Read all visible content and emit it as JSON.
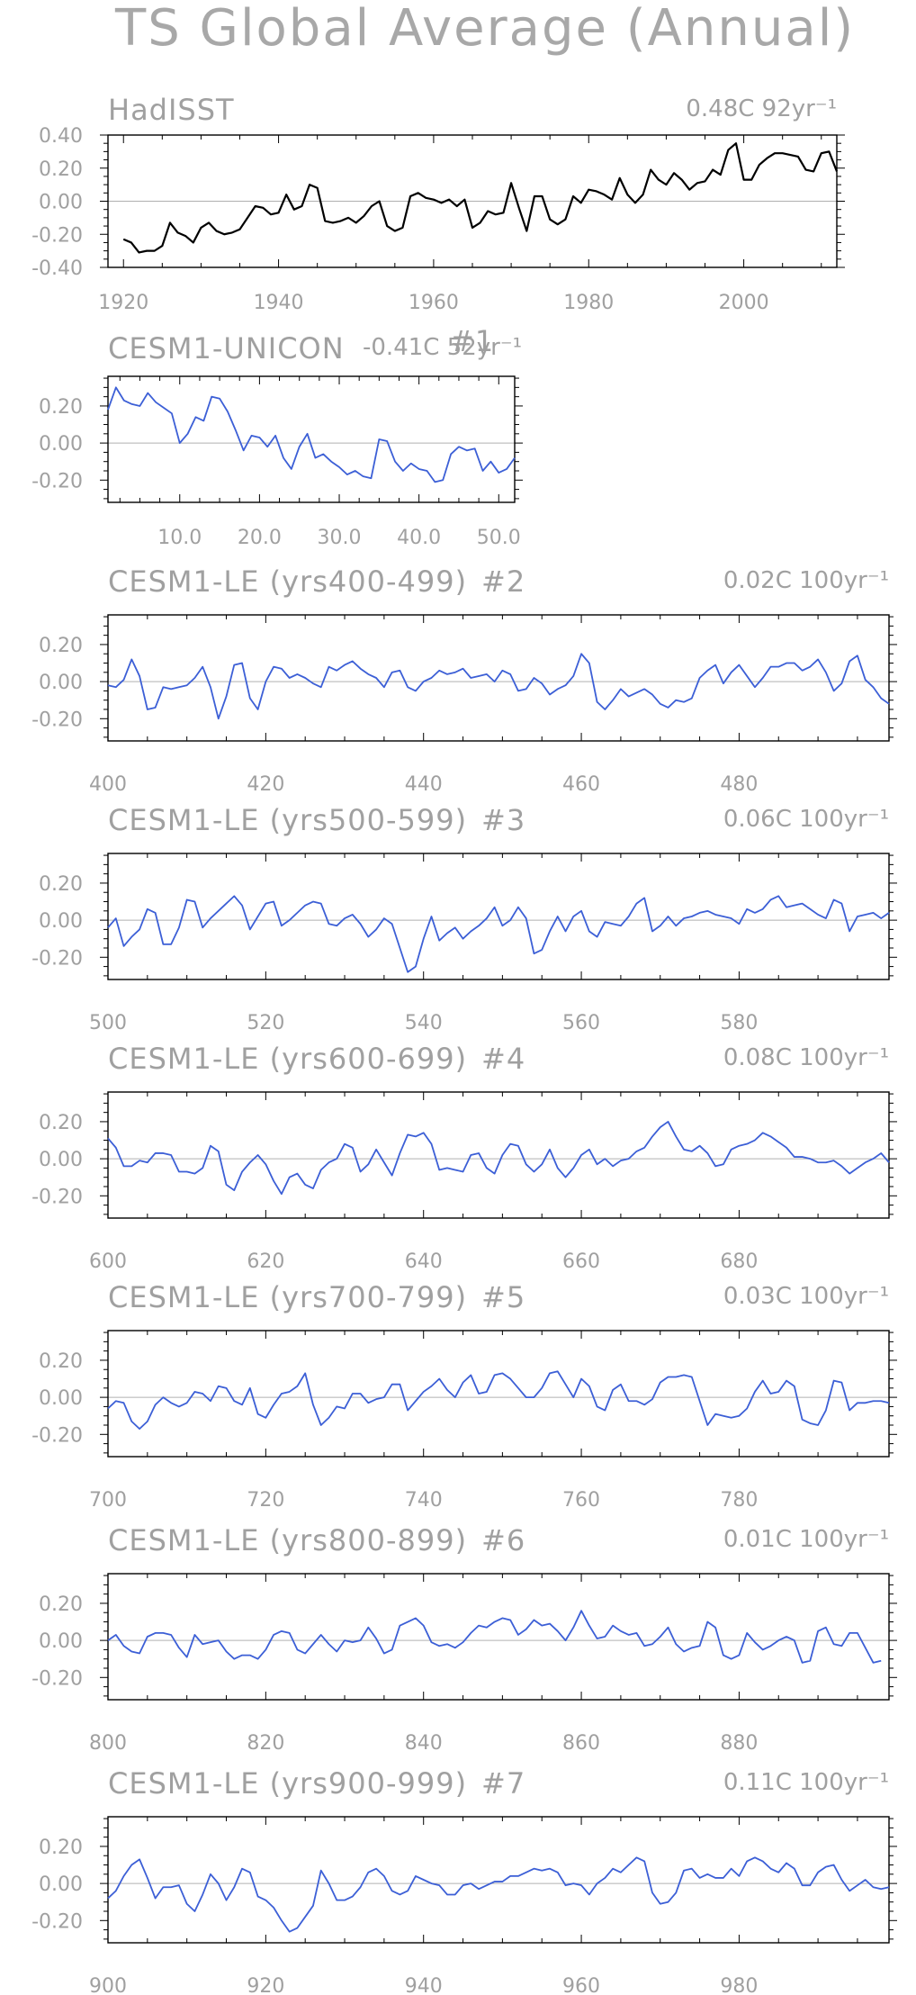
{
  "figure": {
    "title": "TS Global Average (Annual)"
  },
  "chart_data": [
    {
      "type": "line",
      "title": "HadISST",
      "trend_label": "0.48C 92yr⁻¹",
      "color": "#000000",
      "xlim": [
        1918,
        2012
      ],
      "ylim": [
        -0.4,
        0.4
      ],
      "x_ticks": [
        1920,
        1940,
        1960,
        1980,
        2000
      ],
      "x_tick_labels": [
        "1920",
        "1940",
        "1960",
        "1980",
        "2000"
      ],
      "y_ticks": [
        -0.4,
        -0.2,
        0.0,
        0.2,
        0.4
      ],
      "y_tick_labels": [
        "-0.40",
        "-0.20",
        "0.00",
        "0.20",
        "0.40"
      ],
      "x_start": 1920,
      "x_step": 1,
      "values": [
        -0.23,
        -0.25,
        -0.31,
        -0.3,
        -0.3,
        -0.27,
        -0.13,
        -0.19,
        -0.21,
        -0.25,
        -0.16,
        -0.13,
        -0.18,
        -0.2,
        -0.19,
        -0.17,
        -0.1,
        -0.03,
        -0.04,
        -0.08,
        -0.07,
        0.04,
        -0.05,
        -0.03,
        0.1,
        0.08,
        -0.12,
        -0.13,
        -0.12,
        -0.1,
        -0.13,
        -0.09,
        -0.03,
        0.0,
        -0.15,
        -0.18,
        -0.16,
        0.03,
        0.05,
        0.02,
        0.01,
        -0.01,
        0.01,
        -0.03,
        0.01,
        -0.16,
        -0.13,
        -0.06,
        -0.08,
        -0.07,
        0.11,
        -0.04,
        -0.18,
        0.03,
        0.03,
        -0.11,
        -0.14,
        -0.11,
        0.03,
        -0.01,
        0.07,
        0.06,
        0.04,
        0.01,
        0.14,
        0.04,
        -0.01,
        0.04,
        0.19,
        0.13,
        0.1,
        0.17,
        0.13,
        0.07,
        0.11,
        0.12,
        0.19,
        0.16,
        0.31,
        0.35,
        0.13,
        0.13,
        0.22,
        0.26,
        0.29,
        0.29,
        0.28,
        0.27,
        0.19,
        0.18,
        0.29,
        0.3,
        0.18
      ]
    },
    {
      "type": "line",
      "title": "CESM1-UNICON",
      "trend_label": "-0.41C 52yr⁻¹",
      "index_label": "#1",
      "color": "#3c5fd6",
      "xlim": [
        1,
        52
      ],
      "ylim": [
        -0.32,
        0.36
      ],
      "x_ticks": [
        10,
        20,
        30,
        40,
        50
      ],
      "x_tick_labels": [
        "10.0",
        "20.0",
        "30.0",
        "40.0",
        "50.0"
      ],
      "y_ticks": [
        -0.2,
        0.0,
        0.2
      ],
      "y_tick_labels": [
        "-0.20",
        "0.00",
        "0.20"
      ],
      "x_start": 1,
      "x_step": 1,
      "values": [
        0.18,
        0.3,
        0.23,
        0.21,
        0.2,
        0.27,
        0.22,
        0.19,
        0.16,
        0.0,
        0.05,
        0.14,
        0.12,
        0.25,
        0.24,
        0.17,
        0.07,
        -0.04,
        0.04,
        0.03,
        -0.02,
        0.04,
        -0.08,
        -0.14,
        -0.02,
        0.05,
        -0.08,
        -0.06,
        -0.1,
        -0.13,
        -0.17,
        -0.15,
        -0.18,
        -0.19,
        0.02,
        0.01,
        -0.1,
        -0.15,
        -0.11,
        -0.14,
        -0.15,
        -0.21,
        -0.2,
        -0.06,
        -0.02,
        -0.04,
        -0.03,
        -0.15,
        -0.1,
        -0.16,
        -0.14,
        -0.08
      ]
    },
    {
      "type": "line",
      "title": "CESM1-LE (yrs400-499)",
      "trend_label": "0.02C 100yr⁻¹",
      "index_label": "#2",
      "color": "#3c5fd6",
      "xlim": [
        400,
        499
      ],
      "ylim": [
        -0.32,
        0.36
      ],
      "x_ticks": [
        400,
        420,
        440,
        460,
        480
      ],
      "x_tick_labels": [
        "400",
        "420",
        "440",
        "460",
        "480"
      ],
      "y_ticks": [
        -0.2,
        0.0,
        0.2
      ],
      "y_tick_labels": [
        "-0.20",
        "0.00",
        "0.20"
      ],
      "x_start": 400,
      "x_step": 1,
      "values": [
        -0.02,
        -0.03,
        0.01,
        0.12,
        0.03,
        -0.15,
        -0.14,
        -0.03,
        -0.04,
        -0.03,
        -0.02,
        0.02,
        0.08,
        -0.03,
        -0.2,
        -0.08,
        0.09,
        0.1,
        -0.09,
        -0.15,
        0.0,
        0.08,
        0.07,
        0.02,
        0.04,
        0.02,
        -0.01,
        -0.03,
        0.08,
        0.06,
        0.09,
        0.11,
        0.07,
        0.04,
        0.02,
        -0.03,
        0.05,
        0.06,
        -0.03,
        -0.05,
        0.0,
        0.02,
        0.06,
        0.04,
        0.05,
        0.07,
        0.02,
        0.03,
        0.04,
        0.0,
        0.06,
        0.04,
        -0.05,
        -0.04,
        0.02,
        -0.01,
        -0.07,
        -0.04,
        -0.02,
        0.03,
        0.15,
        0.1,
        -0.11,
        -0.15,
        -0.1,
        -0.04,
        -0.08,
        -0.06,
        -0.04,
        -0.07,
        -0.12,
        -0.14,
        -0.1,
        -0.11,
        -0.09,
        0.02,
        0.06,
        0.09,
        -0.01,
        0.05,
        0.09,
        0.03,
        -0.03,
        0.02,
        0.08,
        0.08,
        0.1,
        0.1,
        0.06,
        0.08,
        0.12,
        0.05,
        -0.05,
        -0.01,
        0.11,
        0.14,
        0.01,
        -0.03,
        -0.09,
        -0.12
      ]
    },
    {
      "type": "line",
      "title": "CESM1-LE (yrs500-599)",
      "trend_label": "0.06C 100yr⁻¹",
      "index_label": "#3",
      "color": "#3c5fd6",
      "xlim": [
        500,
        599
      ],
      "ylim": [
        -0.32,
        0.36
      ],
      "x_ticks": [
        500,
        520,
        540,
        560,
        580
      ],
      "x_tick_labels": [
        "500",
        "520",
        "540",
        "560",
        "580"
      ],
      "y_ticks": [
        -0.2,
        0.0,
        0.2
      ],
      "y_tick_labels": [
        "-0.20",
        "0.00",
        "0.20"
      ],
      "x_start": 500,
      "x_step": 1,
      "values": [
        -0.04,
        0.01,
        -0.14,
        -0.09,
        -0.05,
        0.06,
        0.04,
        -0.13,
        -0.13,
        -0.04,
        0.11,
        0.1,
        -0.04,
        0.01,
        0.05,
        0.09,
        0.13,
        0.08,
        -0.05,
        0.02,
        0.09,
        0.1,
        -0.03,
        0.0,
        0.04,
        0.08,
        0.1,
        0.09,
        -0.02,
        -0.03,
        0.01,
        0.03,
        -0.02,
        -0.09,
        -0.05,
        0.01,
        -0.02,
        -0.15,
        -0.28,
        -0.25,
        -0.1,
        0.02,
        -0.11,
        -0.07,
        -0.04,
        -0.1,
        -0.06,
        -0.03,
        0.01,
        0.07,
        -0.03,
        0.0,
        0.07,
        0.01,
        -0.18,
        -0.16,
        -0.06,
        0.02,
        -0.06,
        0.02,
        0.05,
        -0.06,
        -0.09,
        -0.01,
        -0.02,
        -0.03,
        0.02,
        0.09,
        0.12,
        -0.06,
        -0.03,
        0.02,
        -0.03,
        0.01,
        0.02,
        0.04,
        0.05,
        0.03,
        0.02,
        0.01,
        -0.02,
        0.06,
        0.04,
        0.06,
        0.11,
        0.13,
        0.07,
        0.08,
        0.09,
        0.06,
        0.03,
        0.01,
        0.11,
        0.09,
        -0.06,
        0.02,
        0.03,
        0.04,
        0.01,
        0.04
      ]
    },
    {
      "type": "line",
      "title": "CESM1-LE (yrs600-699)",
      "trend_label": "0.08C 100yr⁻¹",
      "index_label": "#4",
      "color": "#3c5fd6",
      "xlim": [
        600,
        699
      ],
      "ylim": [
        -0.32,
        0.36
      ],
      "x_ticks": [
        600,
        620,
        640,
        660,
        680
      ],
      "x_tick_labels": [
        "600",
        "620",
        "640",
        "660",
        "680"
      ],
      "y_ticks": [
        -0.2,
        0.0,
        0.2
      ],
      "y_tick_labels": [
        "-0.20",
        "0.00",
        "0.20"
      ],
      "x_start": 600,
      "x_step": 1,
      "values": [
        0.11,
        0.06,
        -0.04,
        -0.04,
        -0.01,
        -0.02,
        0.03,
        0.03,
        0.02,
        -0.07,
        -0.07,
        -0.08,
        -0.05,
        0.07,
        0.04,
        -0.14,
        -0.17,
        -0.07,
        -0.02,
        0.02,
        -0.03,
        -0.12,
        -0.19,
        -0.1,
        -0.08,
        -0.14,
        -0.16,
        -0.06,
        -0.02,
        0.0,
        0.08,
        0.06,
        -0.07,
        -0.03,
        0.05,
        -0.02,
        -0.09,
        0.03,
        0.13,
        0.12,
        0.14,
        0.08,
        -0.06,
        -0.05,
        -0.06,
        -0.07,
        0.02,
        0.03,
        -0.05,
        -0.08,
        0.02,
        0.08,
        0.07,
        -0.03,
        -0.07,
        -0.03,
        0.05,
        -0.05,
        -0.1,
        -0.05,
        0.02,
        0.05,
        -0.03,
        0.0,
        -0.04,
        -0.01,
        0.0,
        0.04,
        0.06,
        0.12,
        0.17,
        0.2,
        0.12,
        0.05,
        0.04,
        0.07,
        0.03,
        -0.04,
        -0.03,
        0.05,
        0.07,
        0.08,
        0.1,
        0.14,
        0.12,
        0.09,
        0.06,
        0.01,
        0.01,
        0.0,
        -0.02,
        -0.02,
        -0.01,
        -0.04,
        -0.08,
        -0.05,
        -0.02,
        0.0,
        0.03,
        -0.02
      ]
    },
    {
      "type": "line",
      "title": "CESM1-LE (yrs700-799)",
      "trend_label": "0.03C 100yr⁻¹",
      "index_label": "#5",
      "color": "#3c5fd6",
      "xlim": [
        700,
        799
      ],
      "ylim": [
        -0.32,
        0.36
      ],
      "x_ticks": [
        700,
        720,
        740,
        760,
        780
      ],
      "x_tick_labels": [
        "700",
        "720",
        "740",
        "760",
        "780"
      ],
      "y_ticks": [
        -0.2,
        0.0,
        0.2
      ],
      "y_tick_labels": [
        "-0.20",
        "0.00",
        "0.20"
      ],
      "x_start": 700,
      "x_step": 1,
      "values": [
        -0.06,
        -0.02,
        -0.03,
        -0.13,
        -0.17,
        -0.13,
        -0.04,
        0.0,
        -0.03,
        -0.05,
        -0.03,
        0.03,
        0.02,
        -0.02,
        0.06,
        0.05,
        -0.02,
        -0.04,
        0.05,
        -0.09,
        -0.11,
        -0.04,
        0.02,
        0.03,
        0.06,
        0.13,
        -0.04,
        -0.15,
        -0.11,
        -0.05,
        -0.06,
        0.02,
        0.02,
        -0.03,
        -0.01,
        0.0,
        0.07,
        0.07,
        -0.07,
        -0.02,
        0.03,
        0.06,
        0.1,
        0.04,
        0.0,
        0.08,
        0.12,
        0.02,
        0.03,
        0.12,
        0.13,
        0.1,
        0.05,
        0.0,
        0.0,
        0.05,
        0.13,
        0.14,
        0.07,
        0.0,
        0.1,
        0.06,
        -0.05,
        -0.07,
        0.04,
        0.07,
        -0.02,
        -0.02,
        -0.04,
        -0.01,
        0.08,
        0.11,
        0.11,
        0.12,
        0.11,
        -0.02,
        -0.15,
        -0.09,
        -0.1,
        -0.11,
        -0.1,
        -0.06,
        0.03,
        0.09,
        0.02,
        0.03,
        0.09,
        0.06,
        -0.12,
        -0.14,
        -0.15,
        -0.07,
        0.09,
        0.08,
        -0.07,
        -0.03,
        -0.03,
        -0.02,
        -0.02,
        -0.03
      ]
    },
    {
      "type": "line",
      "title": "CESM1-LE (yrs800-899)",
      "trend_label": "0.01C 100yr⁻¹",
      "index_label": "#6",
      "color": "#3c5fd6",
      "xlim": [
        800,
        899
      ],
      "ylim": [
        -0.32,
        0.36
      ],
      "x_ticks": [
        800,
        820,
        840,
        860,
        880
      ],
      "x_tick_labels": [
        "800",
        "820",
        "840",
        "860",
        "880"
      ],
      "y_ticks": [
        -0.2,
        0.0,
        0.2
      ],
      "y_tick_labels": [
        "-0.20",
        "0.00",
        "0.20"
      ],
      "x_start": 800,
      "x_step": 1,
      "values": [
        0.0,
        0.03,
        -0.03,
        -0.06,
        -0.07,
        0.02,
        0.04,
        0.04,
        0.03,
        -0.04,
        -0.09,
        0.03,
        -0.02,
        -0.01,
        0.0,
        -0.06,
        -0.1,
        -0.08,
        -0.08,
        -0.1,
        -0.05,
        0.03,
        0.05,
        0.04,
        -0.05,
        -0.07,
        -0.02,
        0.03,
        -0.02,
        -0.06,
        0.0,
        -0.01,
        0.0,
        0.07,
        0.01,
        -0.07,
        -0.05,
        0.08,
        0.1,
        0.12,
        0.08,
        -0.01,
        -0.03,
        -0.02,
        -0.04,
        -0.01,
        0.04,
        0.08,
        0.07,
        0.1,
        0.12,
        0.11,
        0.03,
        0.06,
        0.11,
        0.08,
        0.09,
        0.05,
        0.0,
        0.07,
        0.16,
        0.08,
        0.01,
        0.02,
        0.08,
        0.05,
        0.03,
        0.04,
        -0.03,
        -0.02,
        0.02,
        0.07,
        -0.02,
        -0.06,
        -0.04,
        -0.03,
        0.1,
        0.07,
        -0.08,
        -0.1,
        -0.08,
        0.04,
        -0.01,
        -0.05,
        -0.03,
        0.0,
        0.02,
        0.0,
        -0.12,
        -0.11,
        0.05,
        0.07,
        -0.02,
        -0.03,
        0.04,
        0.04,
        -0.04,
        -0.12,
        -0.11
      ]
    },
    {
      "type": "line",
      "title": "CESM1-LE (yrs900-999)",
      "trend_label": "0.11C 100yr⁻¹",
      "index_label": "#7",
      "color": "#3c5fd6",
      "xlim": [
        900,
        999
      ],
      "ylim": [
        -0.32,
        0.36
      ],
      "x_ticks": [
        900,
        920,
        940,
        960,
        980
      ],
      "x_tick_labels": [
        "900",
        "920",
        "940",
        "960",
        "980"
      ],
      "y_ticks": [
        -0.2,
        0.0,
        0.2
      ],
      "y_tick_labels": [
        "-0.20",
        "0.00",
        "0.20"
      ],
      "x_start": 900,
      "x_step": 1,
      "values": [
        -0.08,
        -0.04,
        0.04,
        0.1,
        0.13,
        0.03,
        -0.08,
        -0.02,
        -0.02,
        -0.01,
        -0.11,
        -0.15,
        -0.06,
        0.05,
        0.0,
        -0.09,
        -0.02,
        0.08,
        0.06,
        -0.07,
        -0.09,
        -0.13,
        -0.2,
        -0.26,
        -0.24,
        -0.18,
        -0.12,
        0.07,
        0.0,
        -0.09,
        -0.09,
        -0.07,
        -0.02,
        0.06,
        0.08,
        0.04,
        -0.04,
        -0.06,
        -0.04,
        0.04,
        0.02,
        0.0,
        -0.01,
        -0.06,
        -0.06,
        -0.01,
        0.0,
        -0.03,
        -0.01,
        0.01,
        0.01,
        0.04,
        0.04,
        0.06,
        0.08,
        0.07,
        0.08,
        0.06,
        -0.01,
        0.0,
        -0.01,
        -0.06,
        0.0,
        0.03,
        0.08,
        0.06,
        0.1,
        0.14,
        0.12,
        -0.05,
        -0.11,
        -0.1,
        -0.05,
        0.07,
        0.08,
        0.03,
        0.05,
        0.03,
        0.03,
        0.08,
        0.04,
        0.12,
        0.14,
        0.12,
        0.08,
        0.06,
        0.11,
        0.08,
        -0.01,
        -0.01,
        0.06,
        0.09,
        0.1,
        0.02,
        -0.04,
        -0.01,
        0.02,
        -0.02,
        -0.03,
        -0.02
      ]
    }
  ]
}
